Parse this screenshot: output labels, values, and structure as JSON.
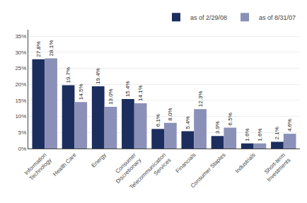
{
  "chart_data": {
    "type": "bar",
    "categories": [
      "Information\nTechnology",
      "Health Care",
      "Energy",
      "Consumer\nDiscretionary",
      "Telecommunication\nServices",
      "Financials",
      "Consumer Staples",
      "Industrials",
      "Short-term\nInvestments"
    ],
    "series": [
      {
        "name": "as of 2/29/08",
        "color": "#1b2e5e",
        "values": [
          27.8,
          19.7,
          19.4,
          15.4,
          6.1,
          5.4,
          3.9,
          1.6,
          2.1
        ],
        "value_labels": [
          "27.8%",
          "19.7%",
          "19.4%",
          "15.4%",
          "6.1%",
          "5.4%",
          "3.9%",
          "1.6%",
          "2.1%"
        ]
      },
      {
        "name": "as of 8/31/07",
        "color": "#8b90b8",
        "values": [
          28.1,
          14.5,
          13.0,
          14.1,
          8.0,
          12.3,
          6.5,
          1.6,
          4.6
        ],
        "value_labels": [
          "28.1%",
          "14.5%",
          "13.0%",
          "14.1%",
          "8.0%",
          "12.3%",
          "6.5%",
          "1.6%",
          "4.6%"
        ]
      }
    ],
    "ylim": [
      0,
      37
    ],
    "yticks": [
      {
        "value": 0,
        "label": "0%"
      },
      {
        "value": 5,
        "label": "5%"
      },
      {
        "value": 10,
        "label": "10%"
      },
      {
        "value": 15,
        "label": "15%"
      },
      {
        "value": 20,
        "label": "20%"
      },
      {
        "value": 25,
        "label": "25%"
      },
      {
        "value": 30,
        "label": "30%"
      },
      {
        "value": 35,
        "label": "35%"
      }
    ],
    "grid": true,
    "legend": "top",
    "data_labels": true
  }
}
